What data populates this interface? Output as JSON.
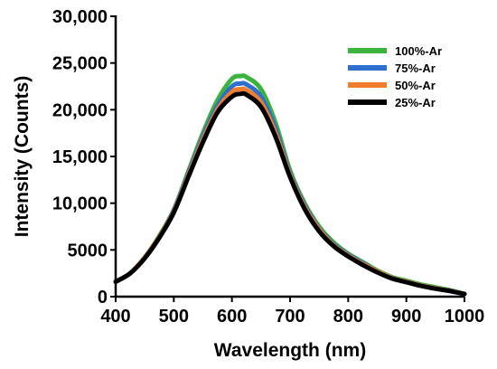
{
  "chart_data": {
    "type": "line",
    "title": "",
    "xlabel": "Wavelength (nm)",
    "ylabel": "Intensity (Counts)",
    "xlim": [
      400,
      1000
    ],
    "ylim": [
      0,
      30000
    ],
    "x_ticks": [
      400,
      500,
      600,
      700,
      800,
      900,
      1000
    ],
    "x_tick_labels": [
      "400",
      "500",
      "600",
      "700",
      "800",
      "900",
      "1000"
    ],
    "y_ticks": [
      0,
      5000,
      10000,
      15000,
      20000,
      25000,
      30000
    ],
    "y_tick_labels": [
      "0",
      "5000",
      "10,000",
      "15,000",
      "20,000",
      "25,000",
      "30,000"
    ],
    "grid": false,
    "legend_position": "top-right",
    "x": [
      400,
      425,
      450,
      475,
      500,
      525,
      550,
      575,
      600,
      615,
      625,
      650,
      675,
      700,
      725,
      750,
      775,
      800,
      825,
      850,
      875,
      900,
      925,
      950,
      975,
      1000
    ],
    "series": [
      {
        "name": "100%-Ar",
        "color": "#3cb33c",
        "values": [
          1600,
          2500,
          4200,
          6500,
          9300,
          13400,
          17500,
          21000,
          23300,
          23600,
          23500,
          22200,
          18600,
          13500,
          10000,
          7500,
          5800,
          4600,
          3700,
          2800,
          2100,
          1700,
          1300,
          1000,
          700,
          300
        ]
      },
      {
        "name": "75%-Ar",
        "color": "#2f6fce",
        "values": [
          1600,
          2500,
          4200,
          6400,
          9200,
          13200,
          17100,
          20400,
          22500,
          22800,
          22700,
          21400,
          18000,
          13200,
          9800,
          7300,
          5600,
          4500,
          3600,
          2700,
          2000,
          1600,
          1200,
          900,
          650,
          300
        ]
      },
      {
        "name": "50%-Ar",
        "color": "#f07d2c",
        "values": [
          1600,
          2500,
          4200,
          6400,
          9100,
          13000,
          16800,
          20000,
          21900,
          22200,
          22100,
          20800,
          17500,
          13000,
          9600,
          7200,
          5500,
          4400,
          3500,
          2700,
          2000,
          1600,
          1200,
          900,
          620,
          300
        ]
      },
      {
        "name": "25%-Ar",
        "color": "#000000",
        "values": [
          1600,
          2500,
          4100,
          6300,
          9000,
          12800,
          16500,
          19700,
          21400,
          21700,
          21600,
          20300,
          17100,
          12800,
          9400,
          7000,
          5400,
          4300,
          3400,
          2600,
          1950,
          1550,
          1150,
          850,
          600,
          280
        ]
      }
    ]
  }
}
